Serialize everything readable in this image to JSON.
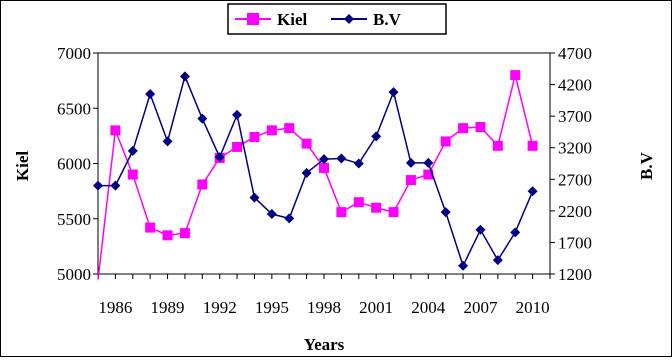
{
  "chart_data": {
    "type": "line",
    "xlabel": "Years",
    "ylabel_left": "Kiel",
    "ylabel_right": "B.V",
    "ylim_left": [
      5000,
      7000
    ],
    "ylim_right": [
      1200,
      4700
    ],
    "yticks_left": [
      "5000",
      "5500",
      "6000",
      "6500",
      "7000"
    ],
    "yticks_right": [
      "1200",
      "1700",
      "2200",
      "2700",
      "3200",
      "3700",
      "4200",
      "4700"
    ],
    "xticks": [
      "1986",
      "1989",
      "1992",
      "1995",
      "1998",
      "2001",
      "2004",
      "2007",
      "2010"
    ],
    "x": [
      1985,
      1986,
      1987,
      1988,
      1989,
      1990,
      1991,
      1992,
      1993,
      1994,
      1995,
      1996,
      1997,
      1998,
      1999,
      2000,
      2001,
      2002,
      2003,
      2004,
      2005,
      2006,
      2007,
      2008,
      2009,
      2010
    ],
    "legend_position": "top-center",
    "grid": false,
    "series": [
      {
        "name": "Kiel",
        "axis": "left",
        "marker": "square",
        "color": "#ff00ff",
        "values": [
          4950,
          6300,
          5900,
          5420,
          5350,
          5370,
          5810,
          6050,
          6150,
          6240,
          6300,
          6320,
          6180,
          5960,
          5560,
          5650,
          5600,
          5560,
          5850,
          5900,
          6200,
          6320,
          6330,
          6160,
          6800,
          6160
        ]
      },
      {
        "name": "B.V",
        "axis": "right",
        "marker": "diamond",
        "color": "#000080",
        "values": [
          2600,
          2600,
          3150,
          4050,
          3300,
          4330,
          3660,
          3050,
          3720,
          2410,
          2150,
          2080,
          2800,
          3020,
          3030,
          2950,
          3380,
          4080,
          2960,
          2960,
          2180,
          1330,
          1900,
          1420,
          1860,
          2510
        ]
      }
    ]
  }
}
